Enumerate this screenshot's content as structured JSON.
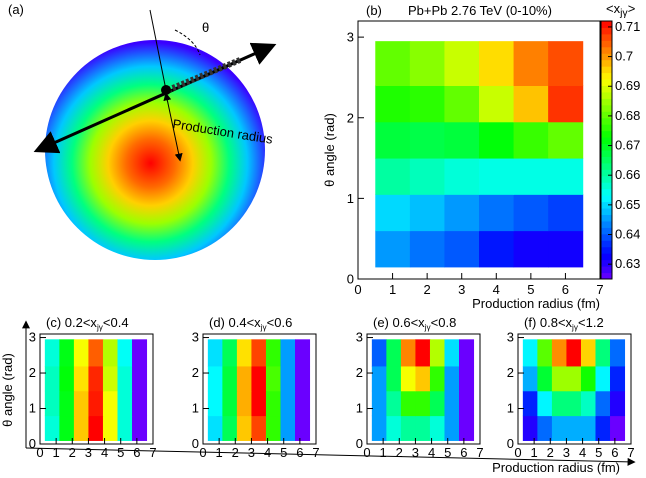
{
  "diagram": {
    "label": "(a)",
    "angle_symbol": "θ",
    "radius_label": "Production radius"
  },
  "shared_axes": {
    "y_label": "θ angle (rad)",
    "x_label": "Production radius (fm)"
  },
  "chart_data": [
    {
      "type": "heatmap",
      "label": "(b)",
      "title": "Pb+Pb 2.76 TeV (0-10%)",
      "x_label": "Production radius (fm)",
      "y_label": "θ angle (rad)",
      "colorbar_label_parts": [
        "<x",
        "jγ",
        ">"
      ],
      "xlim": [
        0,
        7
      ],
      "xticks": [
        0,
        1,
        2,
        3,
        4,
        5,
        6,
        7
      ],
      "ylim": [
        0,
        3.2
      ],
      "yticks": [
        0,
        1,
        2,
        3
      ],
      "zlim": [
        0.625,
        0.712
      ],
      "zticks": [
        0.63,
        0.64,
        0.65,
        0.66,
        0.67,
        0.68,
        0.69,
        0.7,
        0.71
      ],
      "x_edges": [
        0.5,
        1.5,
        2.5,
        3.5,
        4.5,
        5.5,
        6.5
      ],
      "y_edges": [
        0.15,
        0.6,
        1.05,
        1.5,
        1.95,
        2.4,
        2.95
      ],
      "z": [
        [
          0.645,
          0.642,
          0.64,
          0.635,
          0.632,
          0.632
        ],
        [
          0.65,
          0.648,
          0.645,
          0.642,
          0.64,
          0.638
        ],
        [
          0.66,
          0.658,
          0.656,
          0.655,
          0.655,
          0.655
        ],
        [
          0.668,
          0.667,
          0.668,
          0.672,
          0.677,
          0.68
        ],
        [
          0.675,
          0.676,
          0.68,
          0.688,
          0.697,
          0.708
        ],
        [
          0.68,
          0.683,
          0.688,
          0.695,
          0.702,
          0.706
        ]
      ]
    },
    {
      "type": "heatmap",
      "title_parts": [
        "(c) 0.2<x",
        "jγ",
        "<0.4"
      ],
      "xlim": [
        0,
        7
      ],
      "xticks": [
        0,
        1,
        2,
        3,
        4,
        5,
        6,
        7
      ],
      "ylim": [
        0,
        3.1
      ],
      "yticks": [
        0,
        1,
        2,
        3
      ],
      "x_edges": [
        0.3,
        1.2,
        2.1,
        3,
        3.9,
        4.8,
        5.7,
        6.6
      ],
      "y_edges": [
        0.1,
        0.8,
        1.5,
        2.2,
        2.95
      ],
      "z": [
        [
          0.4,
          0.55,
          0.8,
          0.95,
          0.75,
          0.4,
          0.1
        ],
        [
          0.42,
          0.55,
          0.8,
          0.93,
          0.75,
          0.4,
          0.1
        ],
        [
          0.42,
          0.56,
          0.78,
          0.92,
          0.72,
          0.4,
          0.1
        ],
        [
          0.4,
          0.55,
          0.75,
          0.88,
          0.7,
          0.38,
          0.1
        ]
      ]
    },
    {
      "type": "heatmap",
      "title_parts": [
        "(d) 0.4<x",
        "jγ",
        "<0.6"
      ],
      "xlim": [
        0,
        7
      ],
      "xticks": [
        0,
        1,
        2,
        3,
        4,
        5,
        6,
        7
      ],
      "ylim": [
        0,
        3.1
      ],
      "yticks": [
        0,
        1,
        2,
        3
      ],
      "x_edges": [
        0.3,
        1.2,
        2.1,
        3,
        3.9,
        4.8,
        5.7,
        6.6
      ],
      "y_edges": [
        0.1,
        0.8,
        1.5,
        2.2,
        2.95
      ],
      "z": [
        [
          0.35,
          0.5,
          0.8,
          0.9,
          0.6,
          0.3,
          0.1
        ],
        [
          0.37,
          0.52,
          0.82,
          0.95,
          0.6,
          0.3,
          0.1
        ],
        [
          0.37,
          0.52,
          0.82,
          0.95,
          0.62,
          0.3,
          0.1
        ],
        [
          0.35,
          0.5,
          0.78,
          0.9,
          0.6,
          0.3,
          0.1
        ]
      ]
    },
    {
      "type": "heatmap",
      "title_parts": [
        "(e) 0.6<x",
        "jγ",
        "<0.8"
      ],
      "xlim": [
        0,
        7
      ],
      "xticks": [
        0,
        1,
        2,
        3,
        4,
        5,
        6,
        7
      ],
      "ylim": [
        0,
        3.1
      ],
      "yticks": [
        0,
        1,
        2,
        3
      ],
      "x_edges": [
        0.3,
        1.2,
        2.1,
        3,
        3.9,
        4.8,
        5.7,
        6.6
      ],
      "y_edges": [
        0.1,
        0.8,
        1.5,
        2.2,
        2.95
      ],
      "z": [
        [
          0.3,
          0.4,
          0.45,
          0.45,
          0.4,
          0.3,
          0.1
        ],
        [
          0.3,
          0.45,
          0.6,
          0.6,
          0.5,
          0.3,
          0.1
        ],
        [
          0.3,
          0.5,
          0.75,
          0.8,
          0.6,
          0.3,
          0.1
        ],
        [
          0.25,
          0.5,
          0.85,
          0.95,
          0.7,
          0.35,
          0.1
        ]
      ]
    },
    {
      "type": "heatmap",
      "title_parts": [
        "(f) 0.8<x",
        "jγ",
        "<1.2"
      ],
      "xlim": [
        0,
        7
      ],
      "xticks": [
        0,
        1,
        2,
        3,
        4,
        5,
        6,
        7
      ],
      "ylim": [
        0,
        3.1
      ],
      "yticks": [
        0,
        1,
        2,
        3
      ],
      "x_edges": [
        0.3,
        1.2,
        2.1,
        3,
        3.9,
        4.8,
        5.7,
        6.6
      ],
      "y_edges": [
        0.1,
        0.8,
        1.5,
        2.2,
        2.95
      ],
      "z": [
        [
          0.2,
          0.3,
          0.35,
          0.35,
          0.35,
          0.25,
          0.15
        ],
        [
          0.25,
          0.4,
          0.5,
          0.5,
          0.45,
          0.3,
          0.2
        ],
        [
          0.35,
          0.55,
          0.7,
          0.7,
          0.6,
          0.4,
          0.25
        ],
        [
          0.4,
          0.65,
          0.85,
          0.95,
          0.8,
          0.5,
          0.3
        ]
      ]
    }
  ]
}
